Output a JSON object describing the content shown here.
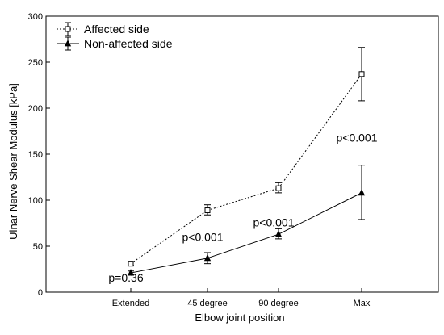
{
  "chart_data": {
    "type": "line",
    "categories": [
      "Extended",
      "45 degree",
      "90 degree",
      "Max"
    ],
    "xlabel": "Elbow joint position",
    "ylabel": "Ulnar Nerve Shear Modulus [kPa]",
    "ylim": [
      0,
      300
    ],
    "yticks": [
      0,
      50,
      100,
      150,
      200,
      250,
      300
    ],
    "grid": false,
    "legend_position": "top-left",
    "series": [
      {
        "name": "Affected side",
        "line_style": "dotted",
        "marker": "square",
        "values": [
          31,
          89,
          113,
          237
        ],
        "error_low": [
          29,
          84,
          108,
          208
        ],
        "error_high": [
          33,
          95,
          119,
          266
        ]
      },
      {
        "name": "Non-affected side",
        "line_style": "solid",
        "marker": "triangle",
        "values": [
          21,
          37,
          63,
          108
        ],
        "error_low": [
          19,
          31,
          58,
          79
        ],
        "error_high": [
          23,
          43,
          69,
          138
        ]
      }
    ],
    "annotations": [
      {
        "text": "p=0.36",
        "x_category": "Extended",
        "y": 16
      },
      {
        "text": "p<0.001",
        "x_category": "45 degree",
        "y": 60
      },
      {
        "text": "p<0.001",
        "x_category": "90 degree",
        "y": 76
      },
      {
        "text": "p<0.001",
        "x_category": "Max",
        "y": 168
      }
    ]
  }
}
